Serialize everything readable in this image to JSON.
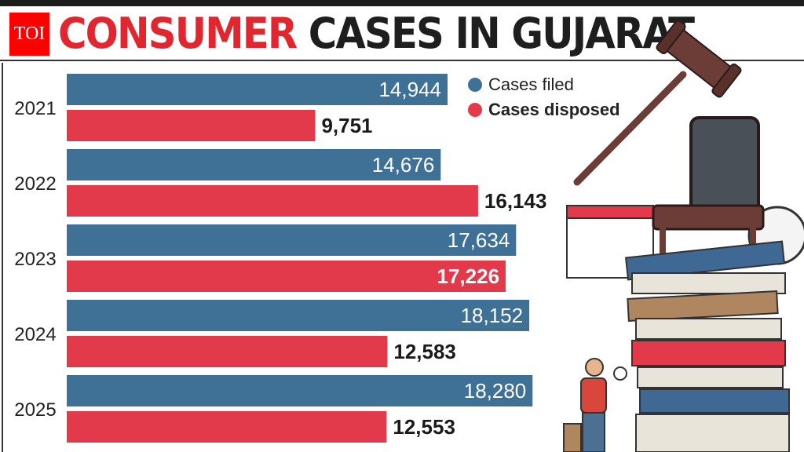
{
  "header": {
    "title_part1": "CONSUMER",
    "title_part2": "CASES IN GUJARAT",
    "logo_text": "TOI"
  },
  "colors": {
    "filed": "#3f7196",
    "disposed": "#e23a4a",
    "title_red": "#e0262f"
  },
  "chart_data": {
    "type": "bar",
    "orientation": "horizontal",
    "title": "CONSUMER CASES IN GUJARAT",
    "categories": [
      "2021",
      "2022",
      "2023",
      "2024",
      "2025"
    ],
    "series": [
      {
        "name": "Cases filed",
        "values": [
          14944,
          14676,
          17634,
          18152,
          18280
        ],
        "labels": [
          "14,944",
          "14,676",
          "17,634",
          "18,152",
          "18,280"
        ]
      },
      {
        "name": "Cases disposed",
        "values": [
          9751,
          16143,
          17226,
          12583,
          12553
        ],
        "labels": [
          "9,751",
          "16,143",
          "17,226",
          "12,583",
          "12,553"
        ]
      }
    ],
    "legend": "top-right",
    "grid": false,
    "xlim": [
      0,
      21000
    ]
  }
}
